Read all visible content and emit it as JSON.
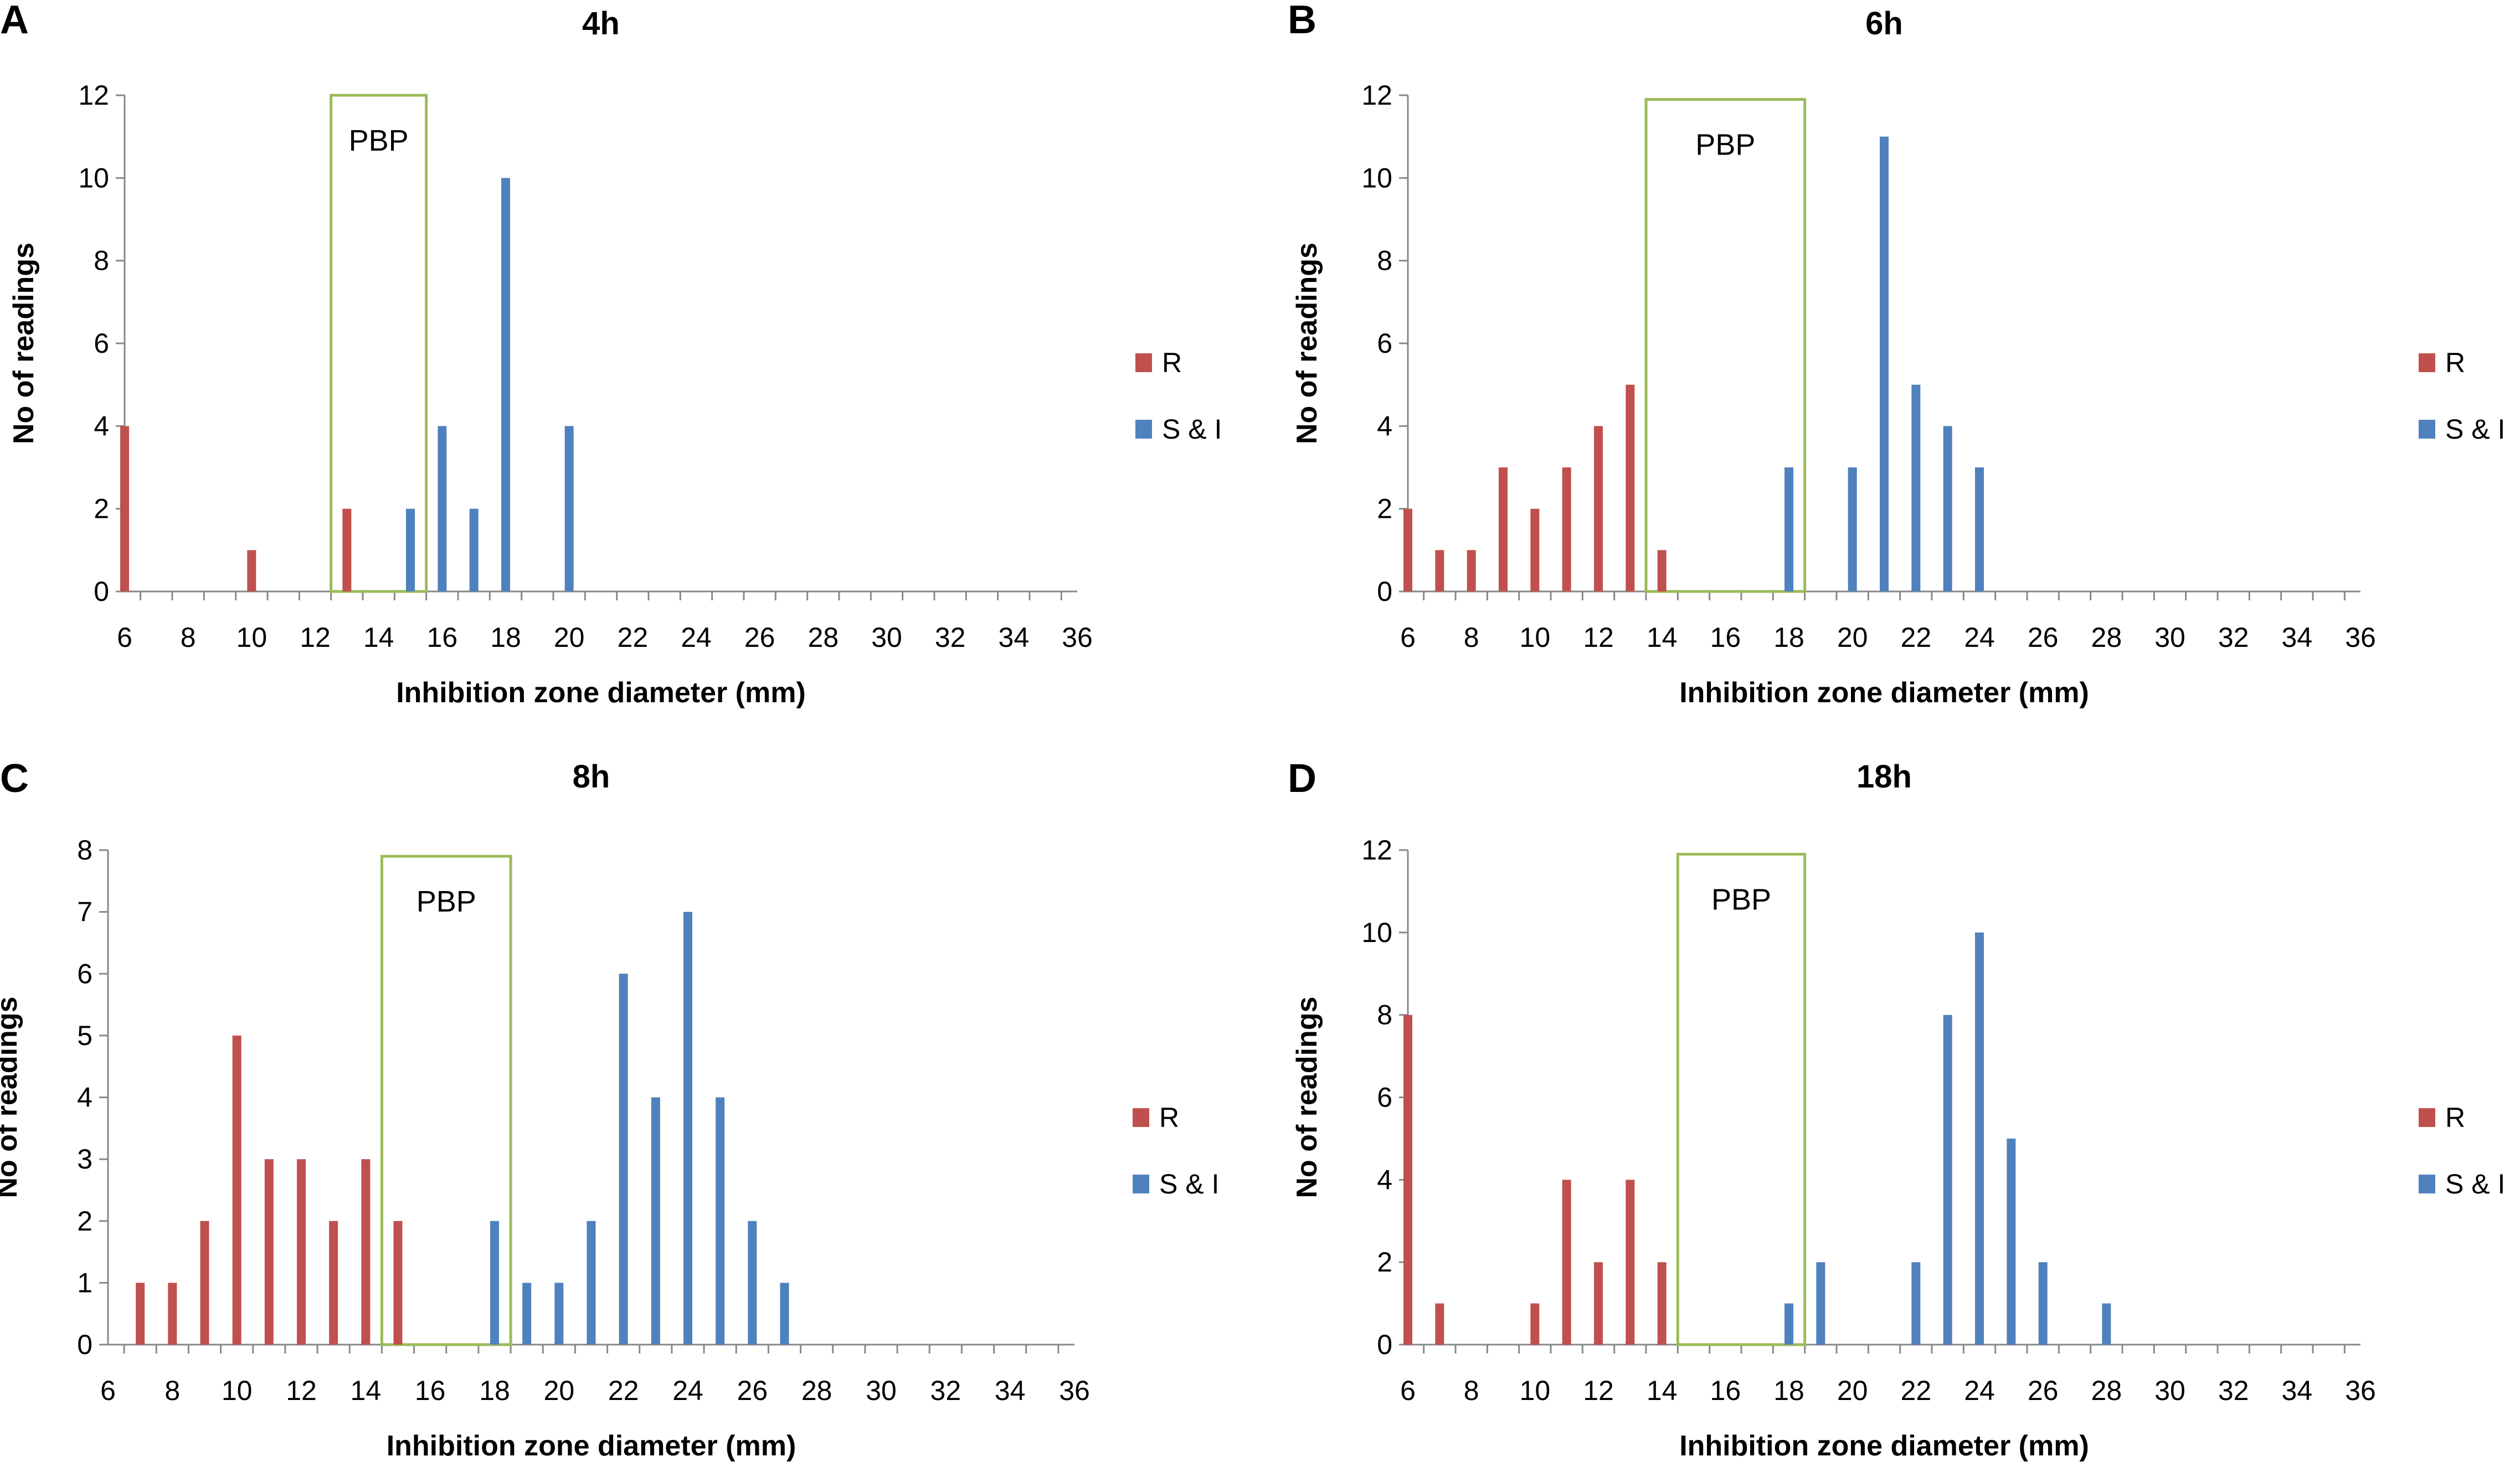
{
  "chart_data": [
    {
      "panel": "A",
      "type": "bar",
      "title": "4h",
      "xlabel": "Inhibition  zone diameter (mm)",
      "ylabel": "No of readings",
      "xlim": [
        6,
        36
      ],
      "xticks": [
        6,
        8,
        10,
        12,
        14,
        16,
        18,
        20,
        22,
        24,
        26,
        28,
        30,
        32,
        34,
        36
      ],
      "ylim": [
        0,
        12
      ],
      "yticks": [
        0,
        2,
        4,
        6,
        8,
        10,
        12
      ],
      "pbp": {
        "label": "PBP",
        "from": 12.5,
        "to": 15.5,
        "top": 12
      },
      "legend": [
        "R",
        "S & I"
      ],
      "colors": {
        "R": "#c0504d",
        "S & I": "#4f81bd",
        "pbp": "#9bbb59"
      },
      "series": [
        {
          "name": "R",
          "points": [
            [
              6,
              4
            ],
            [
              10,
              1
            ],
            [
              13,
              2
            ]
          ]
        },
        {
          "name": "S & I",
          "points": [
            [
              15,
              2
            ],
            [
              16,
              4
            ],
            [
              17,
              2
            ],
            [
              18,
              10
            ],
            [
              20,
              4
            ]
          ]
        }
      ]
    },
    {
      "panel": "B",
      "type": "bar",
      "title": "6h",
      "xlabel": "Inhibition  zone diameter (mm)",
      "ylabel": "No of readings",
      "xlim": [
        6,
        36
      ],
      "xticks": [
        6,
        8,
        10,
        12,
        14,
        16,
        18,
        20,
        22,
        24,
        26,
        28,
        30,
        32,
        34,
        36
      ],
      "ylim": [
        0,
        12
      ],
      "yticks": [
        0,
        2,
        4,
        6,
        8,
        10,
        12
      ],
      "pbp": {
        "label": "PBP",
        "from": 13.5,
        "to": 18.5,
        "top": 11.9
      },
      "legend": [
        "R",
        "S & I"
      ],
      "colors": {
        "R": "#c0504d",
        "S & I": "#4f81bd",
        "pbp": "#9bbb59"
      },
      "series": [
        {
          "name": "R",
          "points": [
            [
              6,
              2
            ],
            [
              7,
              1
            ],
            [
              8,
              1
            ],
            [
              9,
              3
            ],
            [
              10,
              2
            ],
            [
              11,
              3
            ],
            [
              12,
              4
            ],
            [
              13,
              5
            ],
            [
              14,
              1
            ]
          ]
        },
        {
          "name": "S & I",
          "points": [
            [
              18,
              3
            ],
            [
              20,
              3
            ],
            [
              21,
              11
            ],
            [
              22,
              5
            ],
            [
              23,
              4
            ],
            [
              24,
              3
            ]
          ]
        }
      ]
    },
    {
      "panel": "C",
      "type": "bar",
      "title": "8h",
      "xlabel": "Inhibition  zone diameter (mm)",
      "ylabel": "No of readings",
      "xlim": [
        6,
        36
      ],
      "xticks": [
        6,
        8,
        10,
        12,
        14,
        16,
        18,
        20,
        22,
        24,
        26,
        28,
        30,
        32,
        34,
        36
      ],
      "ylim": [
        0,
        8
      ],
      "yticks": [
        0,
        1,
        2,
        3,
        4,
        5,
        6,
        7,
        8
      ],
      "pbp": {
        "label": "PBP",
        "from": 14.5,
        "to": 18.5,
        "top": 7.9
      },
      "legend": [
        "R",
        "S & I"
      ],
      "colors": {
        "R": "#c0504d",
        "S & I": "#4f81bd",
        "pbp": "#9bbb59"
      },
      "series": [
        {
          "name": "R",
          "points": [
            [
              7,
              1
            ],
            [
              8,
              1
            ],
            [
              9,
              2
            ],
            [
              10,
              5
            ],
            [
              11,
              3
            ],
            [
              12,
              3
            ],
            [
              13,
              2
            ],
            [
              14,
              3
            ],
            [
              15,
              2
            ]
          ]
        },
        {
          "name": "S & I",
          "points": [
            [
              18,
              2
            ],
            [
              19,
              1
            ],
            [
              20,
              1
            ],
            [
              21,
              2
            ],
            [
              22,
              6
            ],
            [
              23,
              4
            ],
            [
              24,
              7
            ],
            [
              25,
              4
            ],
            [
              26,
              2
            ],
            [
              27,
              1
            ]
          ]
        }
      ]
    },
    {
      "panel": "D",
      "type": "bar",
      "title": "18h",
      "xlabel": "Inhibition  zone diameter (mm)",
      "ylabel": "No of readings",
      "xlim": [
        6,
        36
      ],
      "xticks": [
        6,
        8,
        10,
        12,
        14,
        16,
        18,
        20,
        22,
        24,
        26,
        28,
        30,
        32,
        34,
        36
      ],
      "ylim": [
        0,
        12
      ],
      "yticks": [
        0,
        2,
        4,
        6,
        8,
        10,
        12
      ],
      "pbp": {
        "label": "PBP",
        "from": 14.5,
        "to": 18.5,
        "top": 11.9
      },
      "legend": [
        "R",
        "S & I"
      ],
      "colors": {
        "R": "#c0504d",
        "S & I": "#4f81bd",
        "pbp": "#9bbb59"
      },
      "series": [
        {
          "name": "R",
          "points": [
            [
              6,
              8
            ],
            [
              7,
              1
            ],
            [
              10,
              1
            ],
            [
              11,
              4
            ],
            [
              12,
              2
            ],
            [
              13,
              4
            ],
            [
              14,
              2
            ]
          ]
        },
        {
          "name": "S & I",
          "points": [
            [
              18,
              1
            ],
            [
              19,
              2
            ],
            [
              22,
              2
            ],
            [
              23,
              8
            ],
            [
              24,
              10
            ],
            [
              25,
              5
            ],
            [
              26,
              2
            ],
            [
              28,
              1
            ]
          ]
        }
      ]
    }
  ]
}
